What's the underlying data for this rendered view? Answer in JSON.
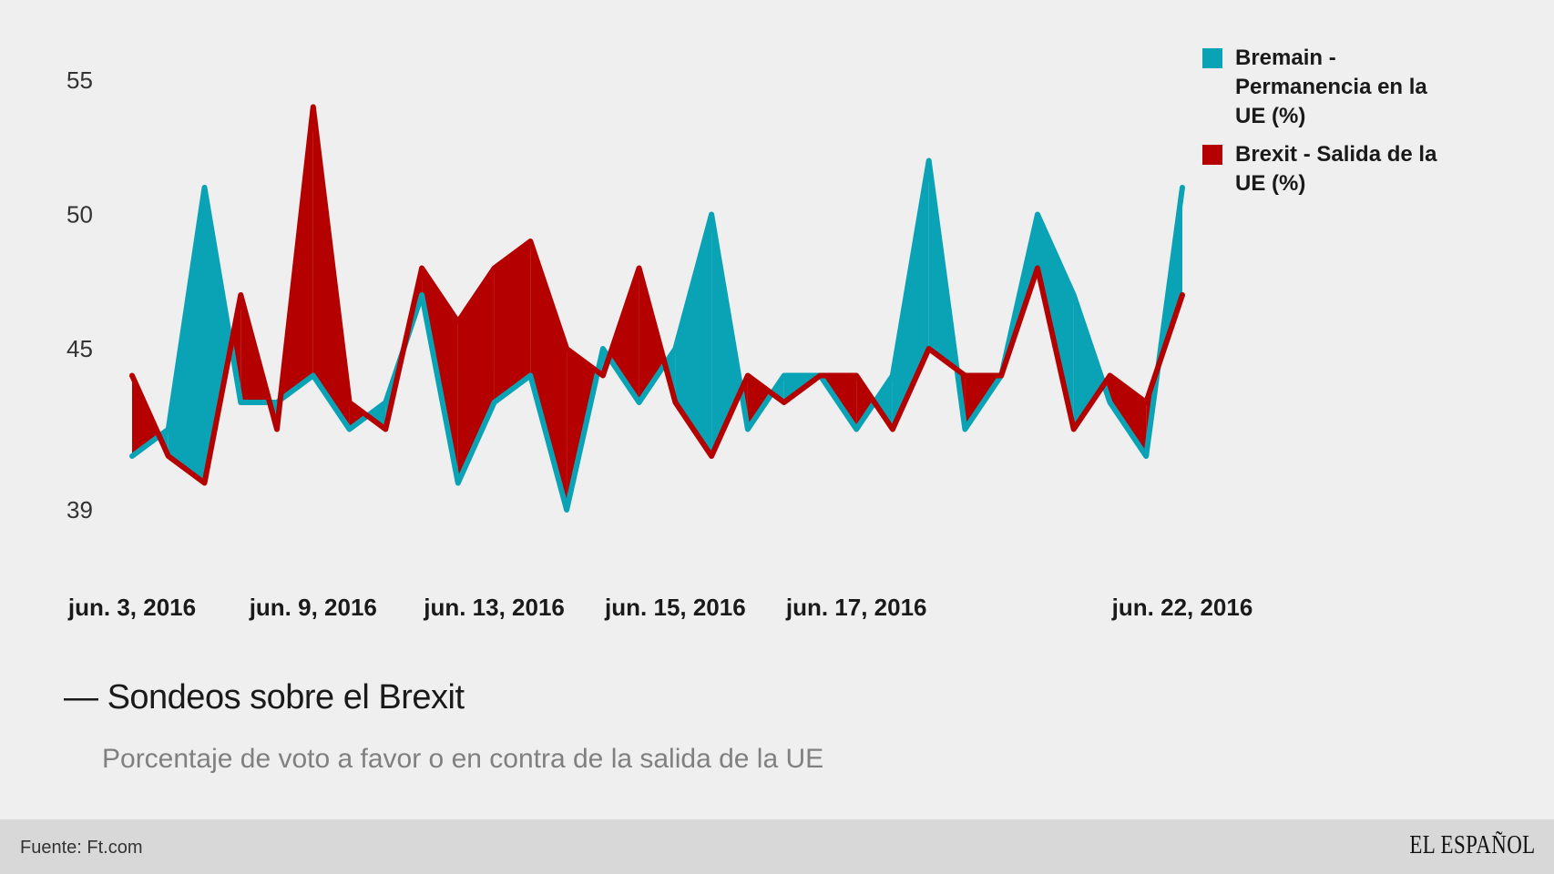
{
  "chart_data": {
    "type": "area",
    "title": "Sondeos sobre el Brexit",
    "subtitle": "Porcentaje de voto a favor o en contra de la salida de la UE",
    "y_ticks": [
      39,
      45,
      50,
      55
    ],
    "ylim": [
      38,
      56
    ],
    "x_labels": [
      {
        "index": 0,
        "label": "jun. 3, 2016"
      },
      {
        "index": 5,
        "label": "jun. 9, 2016"
      },
      {
        "index": 10,
        "label": "jun. 13, 2016"
      },
      {
        "index": 15,
        "label": "jun. 15, 2016"
      },
      {
        "index": 20,
        "label": "jun. 17, 2016"
      },
      {
        "index": 29,
        "label": "jun. 22, 2016"
      }
    ],
    "series": [
      {
        "name": "Bremain - Permanencia en la UE (%)",
        "color": "#0aa3b5",
        "values": [
          41,
          42,
          51,
          43,
          43,
          44,
          42,
          43,
          47,
          40,
          43,
          44,
          39,
          45,
          43,
          45,
          50,
          42,
          44,
          44,
          42,
          44,
          52,
          42,
          44,
          50,
          47,
          43,
          41,
          51
        ]
      },
      {
        "name": "Brexit - Salida de la UE (%)",
        "color": "#b50000",
        "values": [
          44,
          41,
          40,
          47,
          42,
          54,
          43,
          42,
          48,
          46,
          48,
          49,
          45,
          44,
          48,
          43,
          41,
          44,
          43,
          44,
          44,
          42,
          45,
          44,
          44,
          48,
          42,
          44,
          43,
          47
        ]
      }
    ]
  },
  "chart": {
    "title_prefix": "—",
    "title": "Sondeos sobre el Brexit",
    "subtitle": "Porcentaje de voto a favor o en contra de la salida de la UE"
  },
  "legend": {
    "bremain_label": "Bremain - Permanencia en la UE (%)",
    "brexit_label": "Brexit - Salida de la UE (%)"
  },
  "footer": {
    "source": "Fuente: Ft.com",
    "brand": "EL ESPAÑOL"
  }
}
